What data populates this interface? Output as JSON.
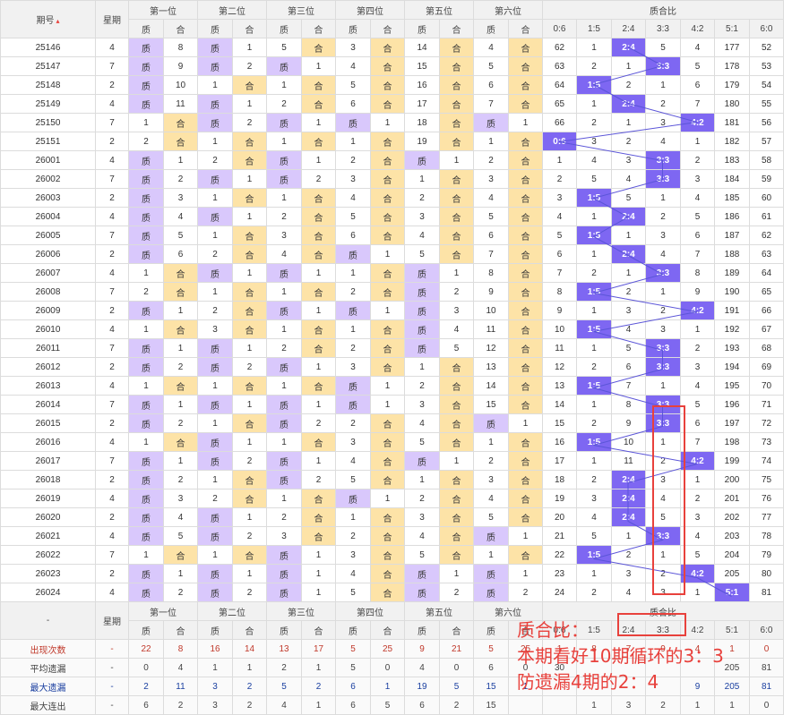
{
  "colors": {
    "prime": "#d9c8fc",
    "composite": "#fde3a7",
    "hit": "#7e67f2",
    "annotation": "#e8413c",
    "trend_line": "#5b55d8"
  },
  "header": {
    "period": "期号",
    "week": "星期",
    "sort_icon": "sort-arrows-icon",
    "positions": [
      "第一位",
      "第二位",
      "第三位",
      "第四位",
      "第五位",
      "第六位"
    ],
    "prime": "质",
    "composite": "合",
    "ratio_group": "质合比",
    "ratio_cols": [
      "0:6",
      "1:5",
      "2:4",
      "3:3",
      "4:2",
      "5:1",
      "6:0"
    ]
  },
  "rows": [
    {
      "p": "25146",
      "w": "4",
      "c": [
        "质",
        "8",
        "质",
        "1",
        "5",
        "合",
        "3",
        "合",
        "14",
        "合",
        "4",
        "合"
      ],
      "r": [
        "62",
        "1",
        "2:4",
        "5",
        "4",
        "177",
        "52"
      ]
    },
    {
      "p": "25147",
      "w": "7",
      "c": [
        "质",
        "9",
        "质",
        "2",
        "质",
        "1",
        "4",
        "合",
        "15",
        "合",
        "5",
        "合"
      ],
      "r": [
        "63",
        "2",
        "1",
        "3:3",
        "5",
        "178",
        "53"
      ]
    },
    {
      "p": "25148",
      "w": "2",
      "c": [
        "质",
        "10",
        "1",
        "合",
        "1",
        "合",
        "5",
        "合",
        "16",
        "合",
        "6",
        "合"
      ],
      "r": [
        "64",
        "1:5",
        "2",
        "1",
        "6",
        "179",
        "54"
      ]
    },
    {
      "p": "25149",
      "w": "4",
      "c": [
        "质",
        "11",
        "质",
        "1",
        "2",
        "合",
        "6",
        "合",
        "17",
        "合",
        "7",
        "合"
      ],
      "r": [
        "65",
        "1",
        "2:4",
        "2",
        "7",
        "180",
        "55"
      ]
    },
    {
      "p": "25150",
      "w": "7",
      "c": [
        "1",
        "合",
        "质",
        "2",
        "质",
        "1",
        "质",
        "1",
        "18",
        "合",
        "质",
        "1"
      ],
      "r": [
        "66",
        "2",
        "1",
        "3",
        "4:2",
        "181",
        "56"
      ]
    },
    {
      "p": "25151",
      "w": "2",
      "c": [
        "2",
        "合",
        "1",
        "合",
        "1",
        "合",
        "1",
        "合",
        "19",
        "合",
        "1",
        "合"
      ],
      "r": [
        "0:6",
        "3",
        "2",
        "4",
        "1",
        "182",
        "57"
      ]
    },
    {
      "p": "26001",
      "w": "4",
      "c": [
        "质",
        "1",
        "2",
        "合",
        "质",
        "1",
        "2",
        "合",
        "质",
        "1",
        "2",
        "合"
      ],
      "r": [
        "1",
        "4",
        "3",
        "3:3",
        "2",
        "183",
        "58"
      ]
    },
    {
      "p": "26002",
      "w": "7",
      "c": [
        "质",
        "2",
        "质",
        "1",
        "质",
        "2",
        "3",
        "合",
        "1",
        "合",
        "3",
        "合"
      ],
      "r": [
        "2",
        "5",
        "4",
        "3:3",
        "3",
        "184",
        "59"
      ]
    },
    {
      "p": "26003",
      "w": "2",
      "c": [
        "质",
        "3",
        "1",
        "合",
        "1",
        "合",
        "4",
        "合",
        "2",
        "合",
        "4",
        "合"
      ],
      "r": [
        "3",
        "1:5",
        "5",
        "1",
        "4",
        "185",
        "60"
      ]
    },
    {
      "p": "26004",
      "w": "4",
      "c": [
        "质",
        "4",
        "质",
        "1",
        "2",
        "合",
        "5",
        "合",
        "3",
        "合",
        "5",
        "合"
      ],
      "r": [
        "4",
        "1",
        "2:4",
        "2",
        "5",
        "186",
        "61"
      ]
    },
    {
      "p": "26005",
      "w": "7",
      "c": [
        "质",
        "5",
        "1",
        "合",
        "3",
        "合",
        "6",
        "合",
        "4",
        "合",
        "6",
        "合"
      ],
      "r": [
        "5",
        "1:5",
        "1",
        "3",
        "6",
        "187",
        "62"
      ]
    },
    {
      "p": "26006",
      "w": "2",
      "c": [
        "质",
        "6",
        "2",
        "合",
        "4",
        "合",
        "质",
        "1",
        "5",
        "合",
        "7",
        "合"
      ],
      "r": [
        "6",
        "1",
        "2:4",
        "4",
        "7",
        "188",
        "63"
      ]
    },
    {
      "p": "26007",
      "w": "4",
      "c": [
        "1",
        "合",
        "质",
        "1",
        "质",
        "1",
        "1",
        "合",
        "质",
        "1",
        "8",
        "合"
      ],
      "r": [
        "7",
        "2",
        "1",
        "3:3",
        "8",
        "189",
        "64"
      ]
    },
    {
      "p": "26008",
      "w": "7",
      "c": [
        "2",
        "合",
        "1",
        "合",
        "1",
        "合",
        "2",
        "合",
        "质",
        "2",
        "9",
        "合"
      ],
      "r": [
        "8",
        "1:5",
        "2",
        "1",
        "9",
        "190",
        "65"
      ]
    },
    {
      "p": "26009",
      "w": "2",
      "c": [
        "质",
        "1",
        "2",
        "合",
        "质",
        "1",
        "质",
        "1",
        "质",
        "3",
        "10",
        "合"
      ],
      "r": [
        "9",
        "1",
        "3",
        "2",
        "4:2",
        "191",
        "66"
      ]
    },
    {
      "p": "26010",
      "w": "4",
      "c": [
        "1",
        "合",
        "3",
        "合",
        "1",
        "合",
        "1",
        "合",
        "质",
        "4",
        "11",
        "合"
      ],
      "r": [
        "10",
        "1:5",
        "4",
        "3",
        "1",
        "192",
        "67"
      ]
    },
    {
      "p": "26011",
      "w": "7",
      "c": [
        "质",
        "1",
        "质",
        "1",
        "2",
        "合",
        "2",
        "合",
        "质",
        "5",
        "12",
        "合"
      ],
      "r": [
        "11",
        "1",
        "5",
        "3:3",
        "2",
        "193",
        "68"
      ]
    },
    {
      "p": "26012",
      "w": "2",
      "c": [
        "质",
        "2",
        "质",
        "2",
        "质",
        "1",
        "3",
        "合",
        "1",
        "合",
        "13",
        "合"
      ],
      "r": [
        "12",
        "2",
        "6",
        "3:3",
        "3",
        "194",
        "69"
      ]
    },
    {
      "p": "26013",
      "w": "4",
      "c": [
        "1",
        "合",
        "1",
        "合",
        "1",
        "合",
        "质",
        "1",
        "2",
        "合",
        "14",
        "合"
      ],
      "r": [
        "13",
        "1:5",
        "7",
        "1",
        "4",
        "195",
        "70"
      ]
    },
    {
      "p": "26014",
      "w": "7",
      "c": [
        "质",
        "1",
        "质",
        "1",
        "质",
        "1",
        "质",
        "1",
        "3",
        "合",
        "15",
        "合"
      ],
      "r": [
        "14",
        "1",
        "8",
        "3:3",
        "5",
        "196",
        "71"
      ]
    },
    {
      "p": "26015",
      "w": "2",
      "c": [
        "质",
        "2",
        "1",
        "合",
        "质",
        "2",
        "2",
        "合",
        "4",
        "合",
        "质",
        "1"
      ],
      "r": [
        "15",
        "2",
        "9",
        "3:3",
        "6",
        "197",
        "72"
      ]
    },
    {
      "p": "26016",
      "w": "4",
      "c": [
        "1",
        "合",
        "质",
        "1",
        "1",
        "合",
        "3",
        "合",
        "5",
        "合",
        "1",
        "合"
      ],
      "r": [
        "16",
        "1:5",
        "10",
        "1",
        "7",
        "198",
        "73"
      ]
    },
    {
      "p": "26017",
      "w": "7",
      "c": [
        "质",
        "1",
        "质",
        "2",
        "质",
        "1",
        "4",
        "合",
        "质",
        "1",
        "2",
        "合"
      ],
      "r": [
        "17",
        "1",
        "11",
        "2",
        "4:2",
        "199",
        "74"
      ]
    },
    {
      "p": "26018",
      "w": "2",
      "c": [
        "质",
        "2",
        "1",
        "合",
        "质",
        "2",
        "5",
        "合",
        "1",
        "合",
        "3",
        "合"
      ],
      "r": [
        "18",
        "2",
        "2:4",
        "3",
        "1",
        "200",
        "75"
      ]
    },
    {
      "p": "26019",
      "w": "4",
      "c": [
        "质",
        "3",
        "2",
        "合",
        "1",
        "合",
        "质",
        "1",
        "2",
        "合",
        "4",
        "合"
      ],
      "r": [
        "19",
        "3",
        "2:4",
        "4",
        "2",
        "201",
        "76"
      ]
    },
    {
      "p": "26020",
      "w": "2",
      "c": [
        "质",
        "4",
        "质",
        "1",
        "2",
        "合",
        "1",
        "合",
        "3",
        "合",
        "5",
        "合"
      ],
      "r": [
        "20",
        "4",
        "2:4",
        "5",
        "3",
        "202",
        "77"
      ]
    },
    {
      "p": "26021",
      "w": "4",
      "c": [
        "质",
        "5",
        "质",
        "2",
        "3",
        "合",
        "2",
        "合",
        "4",
        "合",
        "质",
        "1"
      ],
      "r": [
        "21",
        "5",
        "1",
        "3:3",
        "4",
        "203",
        "78"
      ]
    },
    {
      "p": "26022",
      "w": "7",
      "c": [
        "1",
        "合",
        "1",
        "合",
        "质",
        "1",
        "3",
        "合",
        "5",
        "合",
        "1",
        "合"
      ],
      "r": [
        "22",
        "1:5",
        "2",
        "1",
        "5",
        "204",
        "79"
      ]
    },
    {
      "p": "26023",
      "w": "2",
      "c": [
        "质",
        "1",
        "质",
        "1",
        "质",
        "1",
        "4",
        "合",
        "质",
        "1",
        "质",
        "1"
      ],
      "r": [
        "23",
        "1",
        "3",
        "2",
        "4:2",
        "205",
        "80"
      ]
    },
    {
      "p": "26024",
      "w": "4",
      "c": [
        "质",
        "2",
        "质",
        "2",
        "质",
        "1",
        "5",
        "合",
        "质",
        "2",
        "质",
        "2"
      ],
      "r": [
        "24",
        "2",
        "4",
        "3",
        "1",
        "5:1",
        "81"
      ]
    }
  ],
  "footer": {
    "dash": "-",
    "week": "星期",
    "positions": [
      "第一位",
      "第二位",
      "第三位",
      "第四位",
      "第五位",
      "第六位"
    ],
    "prime": "质",
    "composite": "合",
    "ratio_group": "质合比",
    "ratio_cols": [
      "0:6",
      "1:5",
      "2:4",
      "3:3",
      "4:2",
      "5:1",
      "6:0"
    ]
  },
  "stats": [
    {
      "label": "出现次数",
      "w": "-",
      "v": [
        "22",
        "8",
        "16",
        "14",
        "13",
        "17",
        "5",
        "25",
        "9",
        "21",
        "5",
        "25",
        "1",
        "8",
        "7",
        "9",
        "4",
        "1",
        "0"
      ]
    },
    {
      "label": "平均遗漏",
      "w": "-",
      "v": [
        "0",
        "4",
        "1",
        "1",
        "2",
        "1",
        "5",
        "0",
        "4",
        "0",
        "6",
        "0",
        "30",
        "",
        "",
        "",
        "",
        "205",
        "81"
      ]
    },
    {
      "label": "最大遗漏",
      "w": "-",
      "v": [
        "2",
        "11",
        "3",
        "2",
        "5",
        "2",
        "6",
        "1",
        "19",
        "5",
        "15",
        "1",
        "",
        "",
        "",
        "",
        "9",
        "205",
        "81"
      ]
    },
    {
      "label": "最大连出",
      "w": "-",
      "v": [
        "6",
        "2",
        "3",
        "2",
        "4",
        "1",
        "6",
        "5",
        "6",
        "2",
        "15",
        "",
        "",
        "1",
        "3",
        "2",
        "1",
        "1",
        "0"
      ]
    }
  ],
  "note": [
    "质合比：",
    "本期看好10期循环的3：3",
    "防遗漏4期的2：4"
  ]
}
